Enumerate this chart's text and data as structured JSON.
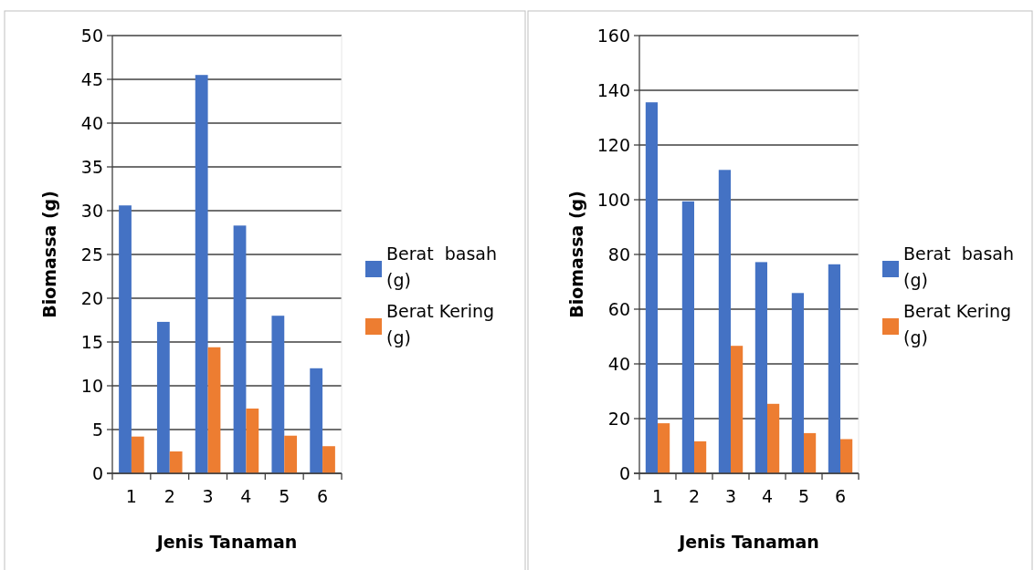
{
  "chart_data": [
    {
      "type": "bar",
      "xlabel": "Jenis Tanaman",
      "ylabel": "Biomassa (g)",
      "categories": [
        "1",
        "2",
        "3",
        "4",
        "5",
        "6"
      ],
      "ylim": [
        0,
        50
      ],
      "yticks": [
        0,
        5,
        10,
        15,
        20,
        25,
        30,
        35,
        40,
        45,
        50
      ],
      "grid": "y",
      "legend": "right",
      "series": [
        {
          "name": "Berat  basah (g)",
          "color": "#4472c4",
          "values": [
            30.6,
            17.3,
            45.5,
            28.3,
            18.0,
            12.0
          ]
        },
        {
          "name": "Berat Kering (g)",
          "color": "#ed7d31",
          "values": [
            4.2,
            2.5,
            14.4,
            7.4,
            4.3,
            3.1
          ]
        }
      ]
    },
    {
      "type": "bar",
      "xlabel": "Jenis Tanaman",
      "ylabel": "Biomassa (g)",
      "categories": [
        "1",
        "2",
        "3",
        "4",
        "5",
        "6"
      ],
      "ylim": [
        0,
        160
      ],
      "yticks": [
        0,
        20,
        40,
        60,
        80,
        100,
        120,
        140,
        160
      ],
      "grid": "y",
      "legend": "right",
      "series": [
        {
          "name": "Berat  basah (g)",
          "color": "#4472c4",
          "values": [
            135.6,
            99.4,
            110.9,
            77.2,
            65.9,
            76.4
          ]
        },
        {
          "name": "Berat Kering (g)",
          "color": "#ed7d31",
          "values": [
            18.3,
            11.7,
            46.6,
            25.4,
            14.7,
            12.5
          ]
        }
      ]
    }
  ]
}
